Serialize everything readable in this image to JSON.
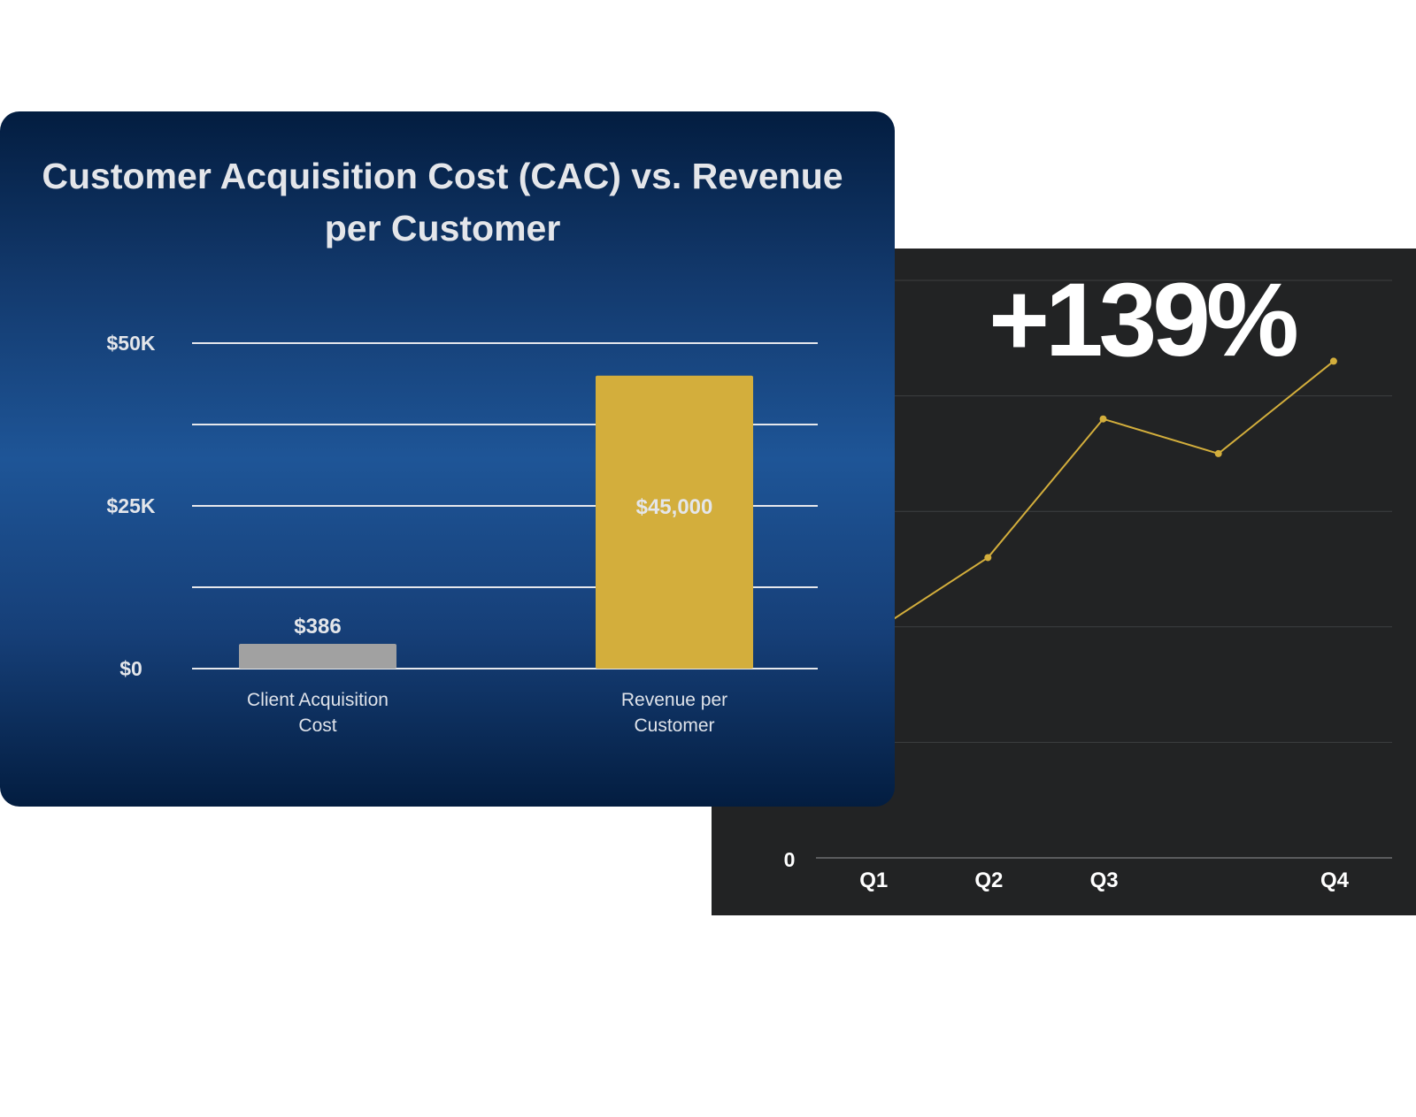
{
  "colors": {
    "card_dark": "#222324",
    "line": "#d3ae3c",
    "gold_bar": "#d3ae3c",
    "gray_bar": "#a1a1a1",
    "gridline_light": "#e6e8ec",
    "text_light": "#e4e6ea"
  },
  "chart_data": [
    {
      "type": "bar",
      "title": "Customer Acquisition Cost (CAC) vs. Revenue per Customer",
      "categories": [
        "Client Acquisition Cost",
        "Revenue per Customer"
      ],
      "category_lines": [
        [
          "Client Acquisition",
          "Cost"
        ],
        [
          "Revenue per",
          "Customer"
        ]
      ],
      "values": [
        386,
        45000
      ],
      "value_labels": [
        "$386",
        "$45,000"
      ],
      "bar_colors": [
        "#a1a1a1",
        "#d3ae3c"
      ],
      "ylim": [
        0,
        50000
      ],
      "yticks": [
        0,
        12500,
        25000,
        37500,
        50000
      ],
      "ytick_labels": [
        {
          "value": 0,
          "label": "$0"
        },
        {
          "value": 25000,
          "label": "$25K"
        },
        {
          "value": 50000,
          "label": "$50K"
        }
      ],
      "grid": true
    },
    {
      "type": "line",
      "headline": "+139%",
      "x": [
        0.5,
        1.5,
        2.5,
        3.5,
        4.5
      ],
      "y": [
        1.95,
        2.6,
        3.8,
        3.5,
        4.3
      ],
      "xtick_labels": [
        {
          "pos": 1,
          "label": "Q1"
        },
        {
          "pos": 2,
          "label": "Q2"
        },
        {
          "pos": 3,
          "label": "Q3"
        },
        {
          "pos": 5,
          "label": "Q4"
        }
      ],
      "ylim": [
        0,
        5
      ],
      "yticks": [
        0,
        1,
        2,
        3,
        4,
        5
      ],
      "ytick_labels": [
        {
          "value": 0,
          "label": "0"
        }
      ],
      "grid": true
    }
  ]
}
